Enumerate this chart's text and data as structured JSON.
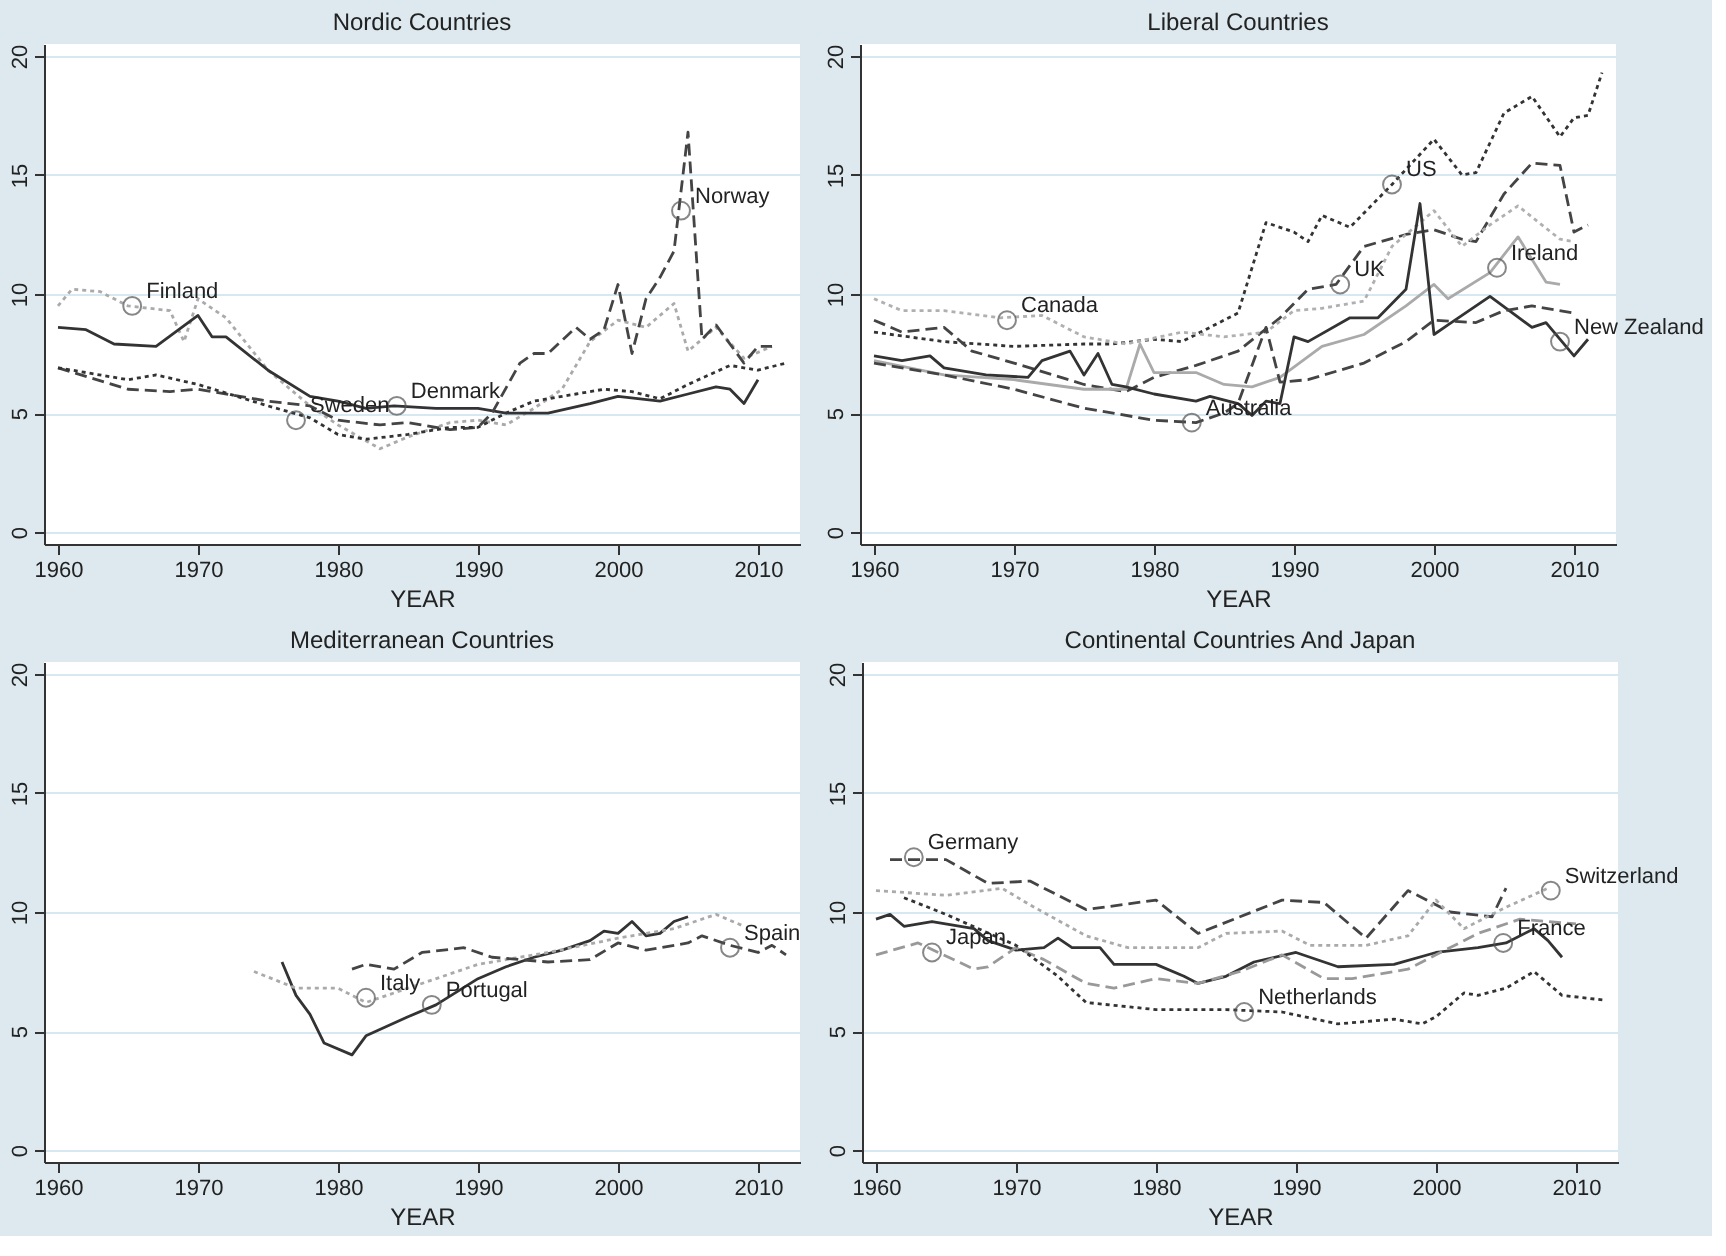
{
  "chart_data": [
    {
      "type": "line",
      "title": "Nordic Countries",
      "xlabel": "YEAR",
      "xlim": [
        1959,
        2013
      ],
      "ylim": [
        -0.5,
        20.5
      ],
      "xticks": [
        1960,
        1970,
        1980,
        1990,
        2000,
        2010
      ],
      "yticks": [
        0,
        5,
        10,
        15,
        20
      ],
      "grid": "y",
      "series": [
        {
          "color": "#aaaaaa",
          "line_style": "dotted",
          "x": [
            1960,
            1961,
            1963,
            1965,
            1968,
            1969,
            1970,
            1972,
            1975,
            1978,
            1980,
            1983,
            1985,
            1988,
            1990,
            1992,
            1994,
            1996,
            1998,
            2000,
            2002,
            2004,
            2005,
            2007,
            2009,
            2011
          ],
          "values": [
            9.5,
            10.2,
            10.1,
            9.5,
            9.3,
            8.0,
            9.8,
            9.0,
            6.8,
            5.3,
            4.5,
            3.5,
            4.0,
            4.6,
            4.7,
            4.5,
            5.2,
            6.0,
            8.0,
            8.9,
            8.6,
            9.6,
            7.6,
            8.6,
            7.3,
            7.8
          ]
        },
        {
          "color": "#333333",
          "line_style": "solid",
          "x": [
            1960,
            1962,
            1964,
            1967,
            1970,
            1971,
            1972,
            1975,
            1978,
            1980,
            1982,
            1984,
            1987,
            1990,
            1992,
            1995,
            1998,
            2000,
            2003,
            2005,
            2007,
            2008,
            2009,
            2010
          ],
          "values": [
            8.6,
            8.5,
            7.9,
            7.8,
            9.1,
            8.2,
            8.2,
            6.8,
            5.7,
            5.5,
            5.2,
            5.3,
            5.2,
            5.2,
            5.0,
            5.0,
            5.4,
            5.7,
            5.5,
            5.8,
            6.1,
            6.0,
            5.4,
            6.4
          ]
        },
        {
          "color": "#444444",
          "line_style": "dashed",
          "x": [
            1960,
            1965,
            1968,
            1970,
            1975,
            1978,
            1980,
            1983,
            1985,
            1988,
            1990,
            1991,
            1993,
            1994,
            1995,
            1997,
            1998,
            1999,
            2000,
            2001,
            2002,
            2003,
            2004,
            2005,
            2006,
            2007,
            2009,
            2010,
            2011
          ],
          "values": [
            6.9,
            6.0,
            5.9,
            6.0,
            5.5,
            5.3,
            4.7,
            4.5,
            4.6,
            4.3,
            4.4,
            5.0,
            7.1,
            7.5,
            7.5,
            8.6,
            8.1,
            8.5,
            10.4,
            7.5,
            9.8,
            10.7,
            11.8,
            16.8,
            8.1,
            8.7,
            7.1,
            7.8,
            7.8
          ]
        },
        {
          "color": "#333333",
          "line_style": "dotted",
          "x": [
            1960,
            1965,
            1967,
            1970,
            1975,
            1978,
            1980,
            1982,
            1985,
            1988,
            1990,
            1992,
            1994,
            1997,
            1999,
            2001,
            2003,
            2005,
            2008,
            2010,
            2012
          ],
          "values": [
            6.9,
            6.4,
            6.6,
            6.2,
            5.3,
            4.8,
            4.1,
            3.9,
            4.1,
            4.4,
            4.4,
            5.0,
            5.5,
            5.8,
            6.0,
            5.9,
            5.6,
            6.2,
            7.0,
            6.8,
            7.1
          ]
        }
      ],
      "annotations": [
        {
          "text": "Finland",
          "x": 1965.3,
          "y": 9.5
        },
        {
          "text": "Sweden",
          "x": 1977,
          "y": 4.7
        },
        {
          "text": "Denmark",
          "x": 1984.2,
          "y": 5.3
        },
        {
          "text": "Norway",
          "x": 2004.5,
          "y": 13.5
        }
      ]
    },
    {
      "type": "line",
      "title": "Liberal Countries",
      "xlabel": "YEAR",
      "xlim": [
        1959,
        2013
      ],
      "ylim": [
        -0.5,
        20.5
      ],
      "xticks": [
        1960,
        1970,
        1980,
        1990,
        2000,
        2010
      ],
      "yticks": [
        0,
        5,
        10,
        15,
        20
      ],
      "grid": "y",
      "series": [
        {
          "color": "#333333",
          "line_style": "dotted",
          "x": [
            1960,
            1965,
            1970,
            1975,
            1977,
            1980,
            1982,
            1986,
            1988,
            1990,
            1991,
            1992,
            1994,
            1997,
            2000,
            2002,
            2003,
            2005,
            2007,
            2009,
            2010,
            2011,
            2012
          ],
          "values": [
            8.4,
            8.0,
            7.8,
            7.9,
            7.9,
            8.1,
            8.0,
            9.2,
            13.0,
            12.6,
            12.2,
            13.3,
            12.8,
            14.6,
            16.5,
            15.0,
            15.1,
            17.6,
            18.3,
            16.6,
            17.4,
            17.5,
            19.3
          ]
        },
        {
          "color": "#444444",
          "line_style": "dashed",
          "x": [
            1960,
            1962,
            1965,
            1967,
            1970,
            1975,
            1978,
            1980,
            1983,
            1986,
            1989,
            1991,
            1993,
            1995,
            1998,
            2000,
            2002,
            2003,
            2005,
            2007,
            2009,
            2010,
            2011
          ],
          "values": [
            8.9,
            8.4,
            8.6,
            7.6,
            7.1,
            6.2,
            5.9,
            6.5,
            7.0,
            7.6,
            9.0,
            10.2,
            10.4,
            12.0,
            12.5,
            12.7,
            12.3,
            12.2,
            14.2,
            15.5,
            15.4,
            12.6,
            12.9
          ]
        },
        {
          "color": "#b0b0b0",
          "line_style": "dotted",
          "x": [
            1960,
            1962,
            1965,
            1969,
            1972,
            1975,
            1978,
            1982,
            1985,
            1988,
            1990,
            1992,
            1995,
            1997,
            2000,
            2002,
            2004,
            2006,
            2009,
            2010
          ],
          "values": [
            9.8,
            9.3,
            9.3,
            9.0,
            9.1,
            8.2,
            7.9,
            8.4,
            8.2,
            8.4,
            9.3,
            9.4,
            9.7,
            12.0,
            13.5,
            12.0,
            12.9,
            13.7,
            12.3,
            12.2
          ]
        },
        {
          "color": "#aaaaaa",
          "line_style": "solid",
          "x": [
            1960,
            1965,
            1970,
            1975,
            1978,
            1979,
            1980,
            1983,
            1985,
            1987,
            1989,
            1992,
            1995,
            1998,
            2000,
            2001,
            2004,
            2006,
            2008,
            2009
          ],
          "values": [
            7.2,
            6.6,
            6.4,
            6.0,
            6.0,
            7.9,
            6.7,
            6.7,
            6.2,
            6.1,
            6.5,
            7.8,
            8.3,
            9.5,
            10.4,
            9.8,
            10.9,
            12.4,
            10.5,
            10.4
          ]
        },
        {
          "color": "#333333",
          "line_style": "solid",
          "x": [
            1960,
            1962,
            1964,
            1965,
            1968,
            1971,
            1972,
            1974,
            1975,
            1976,
            1977,
            1978,
            1980,
            1983,
            1984,
            1986,
            1987,
            1988,
            1989,
            1990,
            1991,
            1994,
            1996,
            1998,
            1999,
            2000,
            2001,
            2004,
            2007,
            2008,
            2010,
            2011
          ],
          "values": [
            7.4,
            7.2,
            7.4,
            6.9,
            6.6,
            6.5,
            7.2,
            7.6,
            6.6,
            7.5,
            6.2,
            6.1,
            5.8,
            5.5,
            5.7,
            5.4,
            4.9,
            5.5,
            5.4,
            8.2,
            8.0,
            9.0,
            9.0,
            10.2,
            13.8,
            8.3,
            8.7,
            9.9,
            8.6,
            8.8,
            7.4,
            8.1
          ]
        },
        {
          "color": "#444444",
          "line_style": "dashed",
          "x": [
            1960,
            1965,
            1970,
            1975,
            1980,
            1983,
            1985,
            1986,
            1987,
            1988,
            1989,
            1991,
            1995,
            1998,
            2000,
            2003,
            2005,
            2007,
            2010
          ],
          "values": [
            7.1,
            6.6,
            6.0,
            5.2,
            4.7,
            4.6,
            5.0,
            5.4,
            7.0,
            8.6,
            6.3,
            6.4,
            7.1,
            8.0,
            8.9,
            8.8,
            9.3,
            9.5,
            9.2
          ]
        }
      ],
      "annotations": [
        {
          "text": "Canada",
          "x": 1969.5,
          "y": 8.9
        },
        {
          "text": "UK",
          "x": 1993.3,
          "y": 10.4
        },
        {
          "text": "US",
          "x": 1997,
          "y": 14.6
        },
        {
          "text": "Ireland",
          "x": 2004.5,
          "y": 11.1
        },
        {
          "text": "New Zealand",
          "x": 2009,
          "y": 8.0
        },
        {
          "text": "Australia",
          "x": 1982.7,
          "y": 4.6
        }
      ]
    },
    {
      "type": "line",
      "title": "Mediterranean Countries",
      "xlabel": "YEAR",
      "xlim": [
        1959,
        2013
      ],
      "ylim": [
        -0.5,
        20.5
      ],
      "xticks": [
        1960,
        1970,
        1980,
        1990,
        2000,
        2010
      ],
      "yticks": [
        0,
        5,
        10,
        15,
        20
      ],
      "grid": "y",
      "series": [
        {
          "color": "#333333",
          "line_style": "solid",
          "x": [
            1976,
            1977,
            1978,
            1979,
            1981,
            1982,
            1985,
            1987,
            1990,
            1992,
            1994,
            1996,
            1998,
            1999,
            2000,
            2001,
            2002,
            2003,
            2004,
            2005
          ],
          "values": [
            7.9,
            6.5,
            5.7,
            4.5,
            4.0,
            4.8,
            5.6,
            6.1,
            7.2,
            7.7,
            8.1,
            8.4,
            8.8,
            9.2,
            9.1,
            9.6,
            9.0,
            9.1,
            9.6,
            9.8
          ]
        },
        {
          "color": "#aaaaaa",
          "line_style": "dotted",
          "x": [
            1974,
            1977,
            1980,
            1982,
            1985,
            1990,
            1995,
            2000,
            2004,
            2007,
            2009
          ],
          "values": [
            7.5,
            6.8,
            6.8,
            6.2,
            6.8,
            7.8,
            8.3,
            8.9,
            9.3,
            9.9,
            9.4
          ]
        },
        {
          "color": "#444444",
          "line_style": "dashed",
          "x": [
            1981,
            1982,
            1984,
            1986,
            1989,
            1991,
            1993,
            1995,
            1998,
            2000,
            2002,
            2005,
            2006,
            2008,
            2010,
            2011,
            2012
          ],
          "values": [
            7.6,
            7.8,
            7.6,
            8.3,
            8.5,
            8.1,
            8.0,
            7.9,
            8.0,
            8.7,
            8.4,
            8.7,
            9.0,
            8.6,
            8.3,
            8.6,
            8.2
          ]
        }
      ],
      "annotations": [
        {
          "text": "Italy",
          "x": 1982,
          "y": 6.4
        },
        {
          "text": "Portugal",
          "x": 1986.7,
          "y": 6.1
        },
        {
          "text": "Spain",
          "x": 2008,
          "y": 8.5
        }
      ]
    },
    {
      "type": "line",
      "title": "Continental Countries And Japan",
      "xlabel": "YEAR",
      "xlim": [
        1959,
        2013
      ],
      "ylim": [
        -0.5,
        20.5
      ],
      "xticks": [
        1960,
        1970,
        1980,
        1990,
        2000,
        2010
      ],
      "yticks": [
        0,
        5,
        10,
        15,
        20
      ],
      "grid": "y",
      "series": [
        {
          "color": "#444444",
          "line_style": "dashed",
          "x": [
            1961,
            1965,
            1968,
            1971,
            1975,
            1980,
            1983,
            1986,
            1989,
            1992,
            1995,
            1998,
            2001,
            2004,
            2005
          ],
          "values": [
            12.2,
            12.2,
            11.2,
            11.3,
            10.1,
            10.5,
            9.1,
            9.8,
            10.5,
            10.4,
            8.9,
            10.9,
            10.0,
            9.8,
            11.0
          ]
        },
        {
          "color": "#aaaaaa",
          "line_style": "dotted",
          "x": [
            1960,
            1965,
            1969,
            1971,
            1975,
            1978,
            1983,
            1985,
            1989,
            1991,
            1995,
            1998,
            2000,
            2002,
            2005,
            2008
          ],
          "values": [
            10.9,
            10.7,
            11.0,
            10.3,
            9.0,
            8.5,
            8.5,
            9.1,
            9.2,
            8.6,
            8.6,
            9.0,
            10.5,
            9.3,
            10.2,
            11.0
          ]
        },
        {
          "color": "#333333",
          "line_style": "solid",
          "x": [
            1960,
            1961,
            1962,
            1964,
            1967,
            1968,
            1970,
            1972,
            1973,
            1974,
            1976,
            1977,
            1980,
            1982,
            1983,
            1985,
            1987,
            1990,
            1992,
            1993,
            1997,
            2000,
            2003,
            2005,
            2007,
            2008,
            2009
          ],
          "values": [
            9.7,
            9.9,
            9.4,
            9.6,
            9.3,
            8.8,
            8.4,
            8.5,
            8.9,
            8.5,
            8.5,
            7.8,
            7.8,
            7.3,
            7.0,
            7.3,
            7.9,
            8.3,
            7.9,
            7.7,
            7.8,
            8.3,
            8.5,
            8.7,
            9.3,
            8.8,
            8.1
          ]
        },
        {
          "color": "#999999",
          "line_style": "dashed",
          "x": [
            1960,
            1963,
            1967,
            1968,
            1970,
            1972,
            1975,
            1977,
            1980,
            1983,
            1986,
            1989,
            1992,
            1994,
            1998,
            2000,
            2003,
            2006,
            2010
          ],
          "values": [
            8.2,
            8.7,
            7.6,
            7.7,
            8.5,
            8.0,
            7.0,
            6.8,
            7.2,
            7.0,
            7.5,
            8.2,
            7.2,
            7.2,
            7.6,
            8.2,
            9.1,
            9.7,
            9.5
          ]
        },
        {
          "color": "#333333",
          "line_style": "dotted",
          "x": [
            1962,
            1965,
            1970,
            1973,
            1975,
            1980,
            1985,
            1989,
            1993,
            1997,
            1999,
            2000,
            2002,
            2003,
            2005,
            2007,
            2009,
            2012
          ],
          "values": [
            10.6,
            9.9,
            8.6,
            7.3,
            6.2,
            5.9,
            5.9,
            5.8,
            5.3,
            5.5,
            5.3,
            5.6,
            6.6,
            6.5,
            6.8,
            7.5,
            6.5,
            6.3
          ]
        }
      ],
      "annotations": [
        {
          "text": "Germany",
          "x": 1962.7,
          "y": 12.3
        },
        {
          "text": "Japan",
          "x": 1964,
          "y": 8.3
        },
        {
          "text": "Netherlands",
          "x": 1986.3,
          "y": 5.8
        },
        {
          "text": "France",
          "x": 2004.8,
          "y": 8.7
        },
        {
          "text": "Switzerland",
          "x": 2008.2,
          "y": 10.9
        }
      ]
    }
  ]
}
